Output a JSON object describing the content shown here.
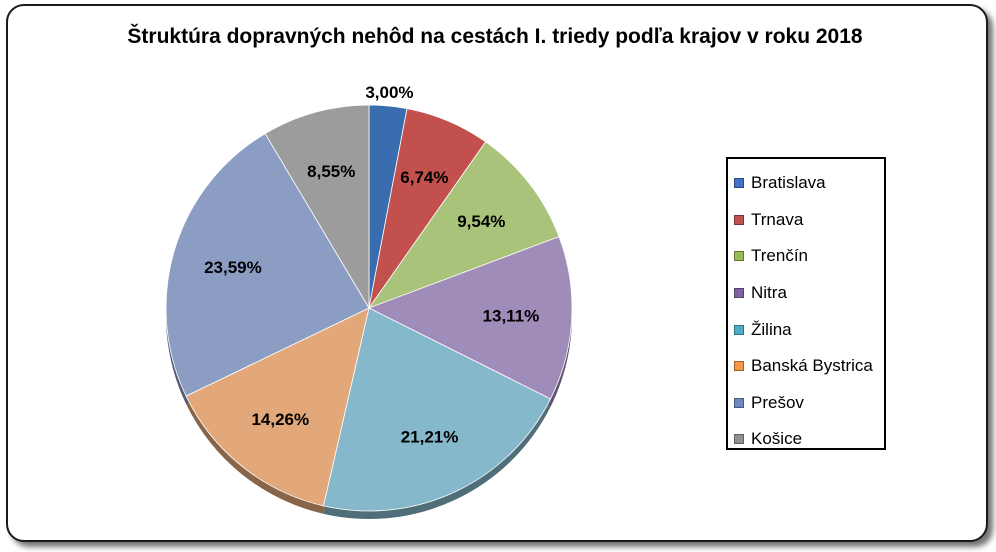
{
  "chart_data": {
    "type": "pie",
    "title": "Štruktúra dopravných nehôd na cestách I. triedy podľa krajov v roku 2018",
    "categories": [
      "Bratislava",
      "Trnava",
      "Trenčín",
      "Nitra",
      "Žilina",
      "Banská Bystrica",
      "Prešov",
      "Košice"
    ],
    "values": [
      3.0,
      6.74,
      9.54,
      13.11,
      21.21,
      14.26,
      23.59,
      8.55
    ],
    "labels": [
      "3,00%",
      "6,74%",
      "9,54%",
      "13,11%",
      "21,21%",
      "14,26%",
      "23,59%",
      "8,55%"
    ],
    "colors": [
      "#4472c4",
      "#c0504d",
      "#9bbb59",
      "#8064a2",
      "#4bacc6",
      "#f79646",
      "#6f89c0",
      "#929292"
    ],
    "slice_colors": [
      "#3a6db0",
      "#c2514e",
      "#a9c47a",
      "#a08cb8",
      "#85b8cb",
      "#e2a87a",
      "#8b9dc3",
      "#9c9c9c"
    ],
    "legend_position": "right"
  }
}
